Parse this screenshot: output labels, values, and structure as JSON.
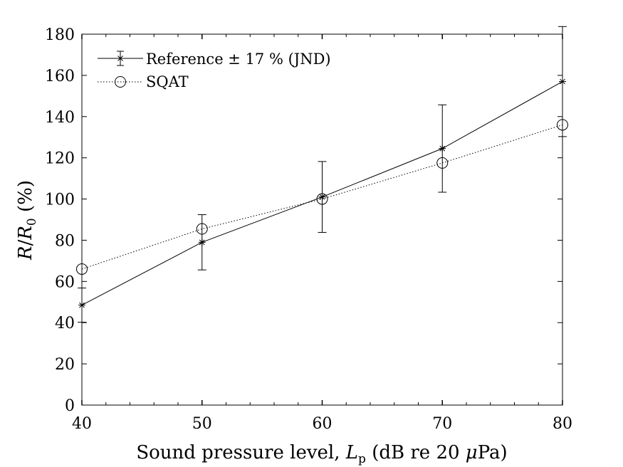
{
  "chart_data": {
    "type": "line",
    "xlabel_parts": [
      "Sound pressure level, ",
      "L",
      "p",
      " (dB re 20 ",
      "μ",
      "Pa)"
    ],
    "ylabel_parts": [
      "R",
      "/",
      "R",
      "0",
      " (%)"
    ],
    "xlim": [
      40,
      80
    ],
    "ylim": [
      0,
      180
    ],
    "xticks": [
      40,
      50,
      60,
      70,
      80
    ],
    "yticks": [
      0,
      20,
      40,
      60,
      80,
      100,
      120,
      140,
      160,
      180
    ],
    "grid": false,
    "legend_position": "top-left",
    "series": [
      {
        "name": "Reference ± 17 % (JND)",
        "marker": "asterisk",
        "line_style": "solid",
        "x": [
          40,
          50,
          60,
          70,
          80
        ],
        "y": [
          48.5,
          79,
          101,
          124.5,
          157
        ],
        "error": [
          8.3,
          13.4,
          17.2,
          21.2,
          26.7
        ]
      },
      {
        "name": "SQAT",
        "marker": "circle",
        "line_style": "dotted",
        "x": [
          40,
          50,
          60,
          70,
          80
        ],
        "y": [
          66,
          85.5,
          100,
          117.5,
          136
        ]
      }
    ]
  }
}
